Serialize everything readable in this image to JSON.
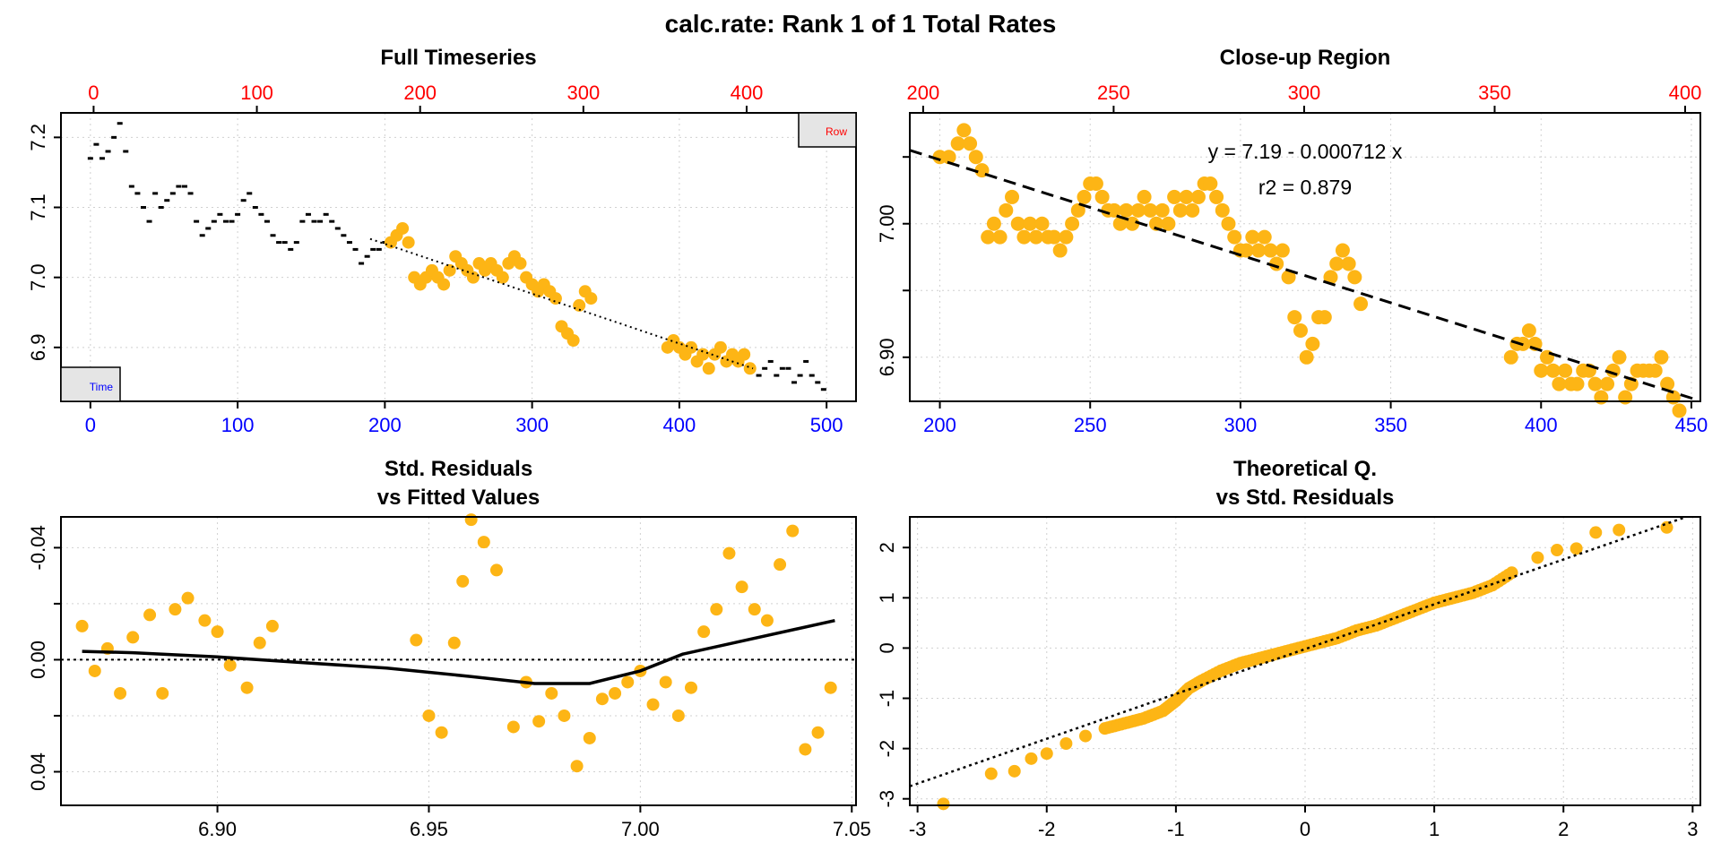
{
  "figure": {
    "title": "calc.rate: Rank 1 of 1 Total Rates",
    "colors": {
      "window_points": "#FDB515",
      "other_points": "#000000",
      "top_axis": "#ff0000",
      "bottom_axis": "#0000ff",
      "grid": "#d0d0d0"
    }
  },
  "chart_data": [
    {
      "id": "full",
      "type": "scatter",
      "title": "Full Timeseries",
      "legend": {
        "row_label": "Row",
        "time_label": "Time",
        "row_position": "top-right",
        "time_position": "bottom-left"
      },
      "x_bottom": {
        "ticks": [
          0,
          100,
          200,
          300,
          400,
          500
        ],
        "range": [
          -20,
          520
        ]
      },
      "x_top": {
        "ticks": [
          0,
          100,
          200,
          300,
          400
        ],
        "range": [
          -20,
          467
        ]
      },
      "y": {
        "ticks": [
          6.9,
          7.0,
          7.1,
          7.2
        ],
        "range": [
          6.823,
          7.235
        ]
      },
      "fit": {
        "style": "dotted",
        "x": [
          190,
          450
        ],
        "y": [
          7.055,
          6.87
        ]
      },
      "series": [
        {
          "role": "outside",
          "x": [
            0,
            4,
            8,
            12,
            16,
            20,
            24,
            28,
            32,
            36,
            40,
            44,
            48,
            52,
            56,
            60,
            64,
            68,
            72,
            76,
            80,
            84,
            88,
            92,
            96,
            100,
            104,
            108,
            112,
            116,
            120,
            124,
            128,
            132,
            136,
            140,
            144,
            148,
            152,
            156,
            160,
            164,
            168,
            172,
            176,
            180,
            184,
            188,
            192,
            196,
            200,
            454,
            458,
            462,
            466,
            470,
            474,
            478,
            482,
            486,
            490,
            494,
            498
          ],
          "y": [
            7.17,
            7.19,
            7.17,
            7.18,
            7.2,
            7.22,
            7.18,
            7.13,
            7.12,
            7.1,
            7.08,
            7.12,
            7.1,
            7.11,
            7.12,
            7.13,
            7.13,
            7.12,
            7.08,
            7.06,
            7.07,
            7.08,
            7.09,
            7.08,
            7.08,
            7.09,
            7.11,
            7.12,
            7.1,
            7.09,
            7.08,
            7.06,
            7.05,
            7.05,
            7.04,
            7.05,
            7.08,
            7.09,
            7.08,
            7.08,
            7.09,
            7.08,
            7.07,
            7.06,
            7.05,
            7.04,
            7.02,
            7.03,
            7.04,
            7.04,
            7.05,
            6.86,
            6.87,
            6.88,
            6.86,
            6.87,
            6.87,
            6.85,
            6.86,
            6.88,
            6.86,
            6.85,
            6.84
          ]
        },
        {
          "role": "window",
          "x": [
            204,
            208,
            212,
            216,
            220,
            224,
            228,
            232,
            236,
            240,
            244,
            248,
            252,
            256,
            260,
            264,
            268,
            272,
            276,
            280,
            284,
            288,
            292,
            296,
            300,
            304,
            308,
            312,
            316,
            320,
            324,
            328,
            332,
            336,
            340,
            392,
            396,
            400,
            404,
            408,
            412,
            416,
            420,
            424,
            428,
            432,
            436,
            440,
            444,
            448
          ],
          "y": [
            7.05,
            7.06,
            7.07,
            7.05,
            7.0,
            6.99,
            7.0,
            7.01,
            7.0,
            6.99,
            7.01,
            7.03,
            7.02,
            7.01,
            7.0,
            7.02,
            7.01,
            7.02,
            7.01,
            7.0,
            7.02,
            7.03,
            7.02,
            7.0,
            6.99,
            6.98,
            6.99,
            6.98,
            6.97,
            6.93,
            6.92,
            6.91,
            6.96,
            6.98,
            6.97,
            6.9,
            6.91,
            6.9,
            6.89,
            6.9,
            6.88,
            6.89,
            6.87,
            6.89,
            6.9,
            6.88,
            6.89,
            6.88,
            6.89,
            6.87
          ]
        }
      ]
    },
    {
      "id": "closeup",
      "type": "scatter",
      "title": "Close-up Region",
      "annotations": {
        "equation": "y = 7.19 - 0.000712 x",
        "r2": "r2 = 0.879"
      },
      "x_bottom": {
        "ticks": [
          200,
          250,
          300,
          350,
          400,
          450
        ],
        "range": [
          190,
          453
        ]
      },
      "x_top": {
        "ticks": [
          200,
          250,
          300,
          350,
          400
        ],
        "range": [
          196.5,
          404
        ]
      },
      "y": {
        "ticks": [
          6.9,
          7.0
        ],
        "minor_ticks": [
          6.95,
          7.05
        ],
        "range": [
          6.867,
          7.083
        ]
      },
      "fit": {
        "style": "dashed",
        "x": [
          190,
          452
        ],
        "y": [
          7.055,
          6.868
        ]
      },
      "series": [
        {
          "role": "window",
          "x": [
            200,
            203,
            206,
            208,
            210,
            212,
            214,
            216,
            218,
            220,
            222,
            224,
            226,
            228,
            230,
            232,
            234,
            236,
            238,
            240,
            242,
            244,
            246,
            248,
            250,
            252,
            254,
            256,
            258,
            260,
            262,
            264,
            266,
            268,
            270,
            272,
            274,
            276,
            278,
            280,
            282,
            284,
            286,
            288,
            290,
            292,
            294,
            296,
            298,
            300,
            302,
            304,
            306,
            308,
            310,
            312,
            314,
            316,
            318,
            320,
            322,
            324,
            326,
            328,
            330,
            332,
            334,
            336,
            338,
            340,
            390,
            392,
            394,
            396,
            398,
            400,
            402,
            404,
            406,
            408,
            410,
            412,
            414,
            416,
            418,
            420,
            422,
            424,
            426,
            428,
            430,
            432,
            434,
            436,
            438,
            440,
            442,
            444,
            446
          ],
          "y": [
            7.05,
            7.05,
            7.06,
            7.07,
            7.06,
            7.05,
            7.04,
            6.99,
            7.0,
            6.99,
            7.01,
            7.02,
            7.0,
            6.99,
            7.0,
            6.99,
            7.0,
            6.99,
            6.99,
            6.98,
            6.99,
            7.0,
            7.01,
            7.02,
            7.03,
            7.03,
            7.02,
            7.01,
            7.01,
            7.0,
            7.01,
            7.0,
            7.01,
            7.02,
            7.01,
            7.0,
            7.01,
            7.0,
            7.02,
            7.01,
            7.02,
            7.01,
            7.02,
            7.03,
            7.03,
            7.02,
            7.01,
            7.0,
            6.99,
            6.98,
            6.98,
            6.99,
            6.98,
            6.99,
            6.98,
            6.97,
            6.98,
            6.96,
            6.93,
            6.92,
            6.9,
            6.91,
            6.93,
            6.93,
            6.96,
            6.97,
            6.98,
            6.97,
            6.96,
            6.94,
            6.9,
            6.91,
            6.91,
            6.92,
            6.91,
            6.89,
            6.9,
            6.89,
            6.88,
            6.89,
            6.88,
            6.88,
            6.89,
            6.89,
            6.88,
            6.87,
            6.88,
            6.89,
            6.9,
            6.87,
            6.88,
            6.89,
            6.89,
            6.89,
            6.89,
            6.9,
            6.88,
            6.87,
            6.86
          ]
        }
      ]
    },
    {
      "id": "resid",
      "type": "scatter",
      "title": "Std. Residuals",
      "title2": "vs Fitted Values",
      "x": {
        "ticks": [
          6.9,
          6.95,
          7.0,
          7.05
        ],
        "tick_labels": [
          "6.90",
          "6.95",
          "7.00",
          "7.05"
        ],
        "range": [
          6.863,
          7.051
        ]
      },
      "y": {
        "ticks": [
          -0.04,
          0.0,
          0.04
        ],
        "tick_labels": [
          "-0.04",
          "0.00",
          "0.04"
        ],
        "minor_ticks": [
          -0.02,
          0.02
        ],
        "range": [
          -0.051,
          0.052
        ],
        "inverted": true
      },
      "hline": 0.0,
      "smooth": {
        "x": [
          6.868,
          6.88,
          6.9,
          6.92,
          6.94,
          6.96,
          6.975,
          6.988,
          7.0,
          7.01,
          7.025,
          7.046
        ],
        "y": [
          -0.003,
          -0.0025,
          -0.001,
          0.001,
          0.003,
          0.006,
          0.0085,
          0.0085,
          0.004,
          -0.002,
          -0.007,
          -0.014
        ]
      },
      "series": [
        {
          "role": "window",
          "x": [
            6.868,
            6.871,
            6.874,
            6.877,
            6.88,
            6.884,
            6.887,
            6.89,
            6.893,
            6.897,
            6.9,
            6.903,
            6.907,
            6.91,
            6.913,
            6.947,
            6.95,
            6.953,
            6.956,
            6.958,
            6.96,
            6.963,
            6.966,
            6.97,
            6.973,
            6.976,
            6.979,
            6.982,
            6.985,
            6.988,
            6.991,
            6.994,
            6.997,
            7.0,
            7.003,
            7.006,
            7.009,
            7.012,
            7.015,
            7.018,
            7.021,
            7.024,
            7.027,
            7.03,
            7.033,
            7.036,
            7.039,
            7.042,
            7.045
          ],
          "y": [
            -0.012,
            0.004,
            -0.004,
            0.012,
            -0.008,
            -0.016,
            0.012,
            -0.018,
            -0.022,
            -0.014,
            -0.01,
            0.002,
            0.01,
            -0.006,
            -0.012,
            -0.007,
            0.02,
            0.026,
            -0.006,
            -0.028,
            -0.05,
            -0.042,
            -0.032,
            0.024,
            0.008,
            0.022,
            0.012,
            0.02,
            0.038,
            0.028,
            0.014,
            0.012,
            0.008,
            0.004,
            0.016,
            0.008,
            0.02,
            0.01,
            -0.01,
            -0.018,
            -0.038,
            -0.026,
            -0.018,
            -0.014,
            -0.034,
            -0.046,
            0.032,
            0.026,
            0.01
          ]
        }
      ]
    },
    {
      "id": "qq",
      "type": "scatter",
      "title": "Theoretical Q.",
      "title2": "vs Std. Residuals",
      "x": {
        "ticks": [
          -3,
          -2,
          -1,
          0,
          1,
          2,
          3
        ],
        "range": [
          -3.06,
          3.06
        ]
      },
      "y": {
        "ticks": [
          -3,
          -2,
          -1,
          0,
          1,
          2
        ],
        "range": [
          -3.13,
          2.61
        ]
      },
      "reference_line": {
        "style": "dotted",
        "x": [
          -3.06,
          2.95
        ],
        "y": [
          -2.75,
          2.61
        ]
      },
      "series": [
        {
          "role": "window",
          "x": [
            -2.8,
            -2.43,
            -2.25,
            -2.12,
            -2.0,
            -1.85,
            -1.7,
            -1.55,
            -1.4,
            -1.25,
            -1.1,
            -1.0,
            -0.9,
            -0.8,
            -0.65,
            -0.5,
            -0.35,
            -0.2,
            -0.05,
            0.1,
            0.25,
            0.4,
            0.55,
            0.7,
            0.85,
            1.0,
            1.15,
            1.3,
            1.45,
            1.6,
            1.8,
            1.95,
            2.1,
            2.25,
            2.43,
            2.8
          ],
          "y": [
            -3.1,
            -2.5,
            -2.45,
            -2.2,
            -2.1,
            -1.9,
            -1.75,
            -1.6,
            -1.5,
            -1.4,
            -1.25,
            -1.05,
            -0.8,
            -0.65,
            -0.45,
            -0.3,
            -0.2,
            -0.1,
            0.0,
            0.1,
            0.2,
            0.35,
            0.45,
            0.6,
            0.75,
            0.9,
            1.0,
            1.1,
            1.25,
            1.5,
            1.8,
            1.95,
            1.98,
            2.3,
            2.35,
            2.4
          ]
        }
      ]
    }
  ]
}
